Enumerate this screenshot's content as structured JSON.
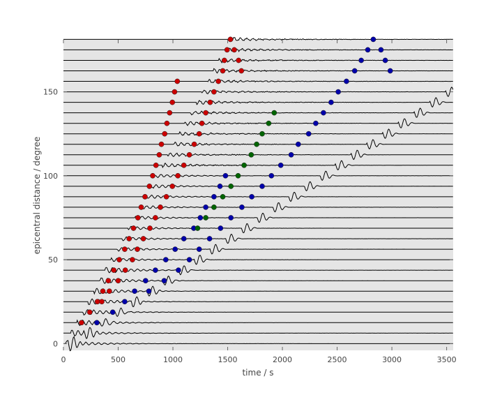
{
  "chart_data": {
    "type": "line",
    "xlabel": "time / s",
    "ylabel": "epicentral distance / degree",
    "xlim": [
      0,
      3560
    ],
    "ylim": [
      -4,
      181
    ],
    "xticks": [
      0,
      500,
      1000,
      1500,
      2000,
      2500,
      3000,
      3500
    ],
    "yticks": [
      0,
      50,
      100,
      150
    ],
    "grid": false,
    "colors": {
      "background": "#e5e5e5",
      "trace": "#000000",
      "red_marker": "#cc0000",
      "blue_marker": "#0000aa",
      "green_marker": "#006400",
      "tick_label": "#555555"
    },
    "trace_distances": [
      0,
      6.25,
      12.5,
      18.75,
      25,
      31.25,
      37.5,
      43.75,
      50,
      56.25,
      62.5,
      68.75,
      75,
      81.25,
      87.5,
      93.75,
      100,
      106.25,
      112.5,
      118.75,
      125,
      131.25,
      137.5,
      143.75,
      150,
      156.25,
      162.5,
      168.75,
      175,
      181.25
    ],
    "series": [
      {
        "marker_color": "red",
        "points": [
          [
            165,
            12.5
          ],
          [
            240,
            18.75
          ],
          [
            310,
            25
          ],
          [
            350,
            25
          ],
          [
            360,
            31.25
          ],
          [
            420,
            31.25
          ],
          [
            410,
            37.5
          ],
          [
            500,
            37.5
          ],
          [
            460,
            43.75
          ],
          [
            565,
            43.75
          ],
          [
            510,
            50
          ],
          [
            630,
            50
          ],
          [
            560,
            56.25
          ],
          [
            675,
            56.25
          ],
          [
            600,
            62.5
          ],
          [
            730,
            62.5
          ],
          [
            640,
            68.75
          ],
          [
            790,
            68.75
          ],
          [
            680,
            75
          ],
          [
            840,
            75
          ],
          [
            710,
            81.25
          ],
          [
            885,
            81.25
          ],
          [
            745,
            87.5
          ],
          [
            940,
            87.5
          ],
          [
            785,
            93.75
          ],
          [
            995,
            93.75
          ],
          [
            815,
            100
          ],
          [
            1045,
            100
          ],
          [
            845,
            106.25
          ],
          [
            1100,
            106.25
          ],
          [
            875,
            112.5
          ],
          [
            1150,
            112.5
          ],
          [
            895,
            118.75
          ],
          [
            1195,
            118.75
          ],
          [
            925,
            125
          ],
          [
            1240,
            125
          ],
          [
            945,
            131.25
          ],
          [
            1265,
            131.25
          ],
          [
            970,
            137.5
          ],
          [
            1300,
            137.5
          ],
          [
            995,
            143.75
          ],
          [
            1340,
            143.75
          ],
          [
            1015,
            150
          ],
          [
            1375,
            150
          ],
          [
            1040,
            156.25
          ],
          [
            1415,
            156.25
          ],
          [
            1455,
            162.5
          ],
          [
            1625,
            162.5
          ],
          [
            1470,
            168.75
          ],
          [
            1600,
            168.75
          ],
          [
            1495,
            175
          ],
          [
            1560,
            175
          ],
          [
            1525,
            181.25
          ]
        ]
      },
      {
        "marker_color": "blue",
        "points": [
          [
            305,
            12.5
          ],
          [
            450,
            18.75
          ],
          [
            560,
            25
          ],
          [
            650,
            31.25
          ],
          [
            780,
            31.25
          ],
          [
            750,
            37.5
          ],
          [
            920,
            37.5
          ],
          [
            840,
            43.75
          ],
          [
            1050,
            43.75
          ],
          [
            935,
            50
          ],
          [
            1150,
            50
          ],
          [
            1020,
            56.25
          ],
          [
            1240,
            56.25
          ],
          [
            1100,
            62.5
          ],
          [
            1335,
            62.5
          ],
          [
            1190,
            68.75
          ],
          [
            1435,
            68.75
          ],
          [
            1250,
            75
          ],
          [
            1530,
            75
          ],
          [
            1300,
            81.25
          ],
          [
            1630,
            81.25
          ],
          [
            1375,
            87.5
          ],
          [
            1720,
            87.5
          ],
          [
            1430,
            93.75
          ],
          [
            1815,
            93.75
          ],
          [
            1480,
            100
          ],
          [
            1900,
            100
          ],
          [
            1985,
            106.25
          ],
          [
            2080,
            112.5
          ],
          [
            2145,
            118.75
          ],
          [
            2240,
            125
          ],
          [
            2305,
            131.25
          ],
          [
            2375,
            137.5
          ],
          [
            2445,
            143.75
          ],
          [
            2510,
            150
          ],
          [
            2585,
            156.25
          ],
          [
            2660,
            162.5
          ],
          [
            2985,
            162.5
          ],
          [
            2720,
            168.75
          ],
          [
            2940,
            168.75
          ],
          [
            2780,
            175
          ],
          [
            2900,
            175
          ],
          [
            2830,
            181.25
          ]
        ]
      },
      {
        "marker_color": "green",
        "points": [
          [
            1225,
            68.75
          ],
          [
            1300,
            75
          ],
          [
            1375,
            81.25
          ],
          [
            1455,
            87.5
          ],
          [
            1530,
            93.75
          ],
          [
            1595,
            100
          ],
          [
            1650,
            106.25
          ],
          [
            1715,
            112.5
          ],
          [
            1765,
            118.75
          ],
          [
            1815,
            125
          ],
          [
            1875,
            131.25
          ],
          [
            1925,
            137.5
          ]
        ]
      }
    ]
  }
}
